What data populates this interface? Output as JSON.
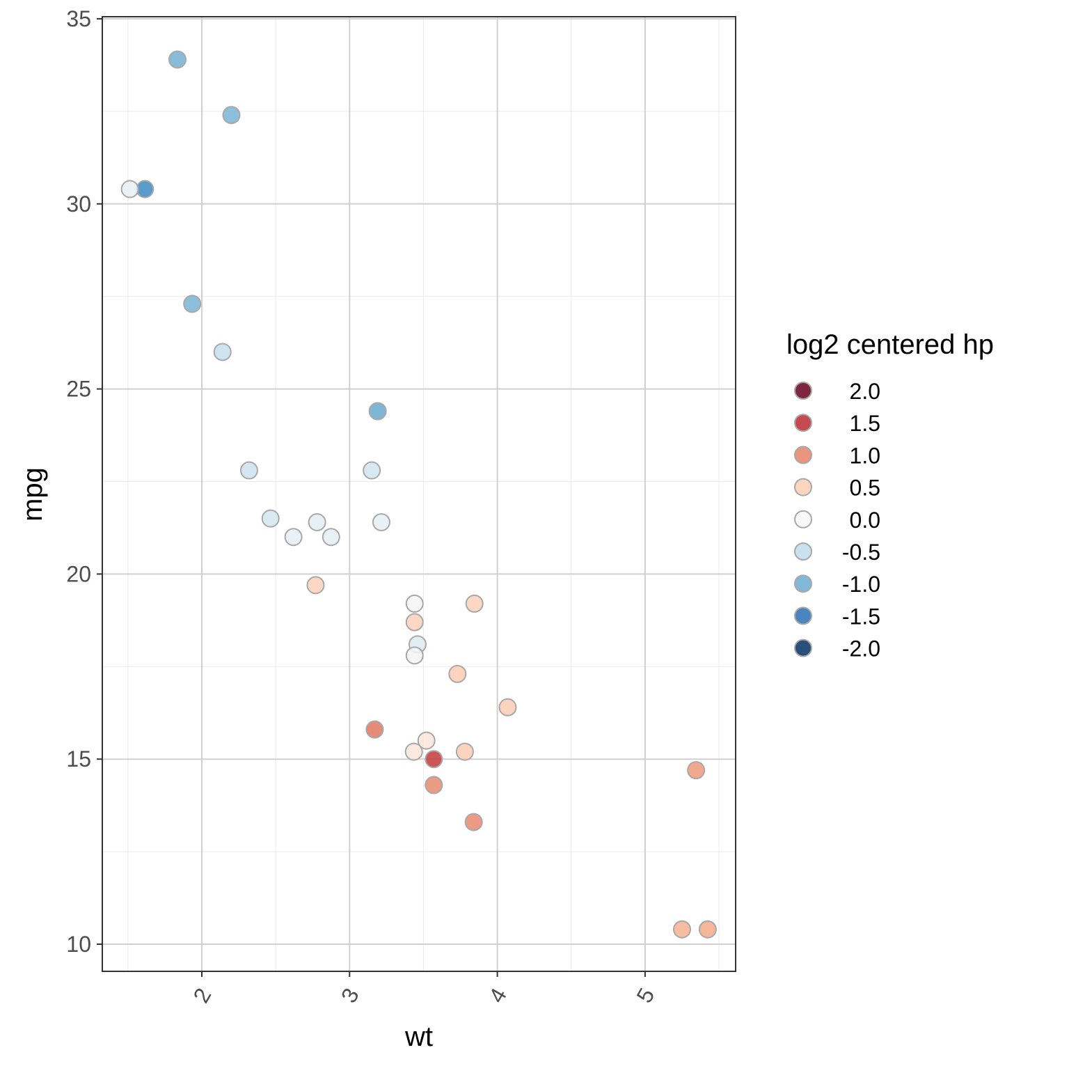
{
  "chart_data": {
    "type": "scatter",
    "title": "",
    "xlabel": "wt",
    "ylabel": "mpg",
    "xlim": [
      1.32,
      5.62
    ],
    "ylim": [
      9.2,
      35.0
    ],
    "x_ticks": [
      2,
      3,
      4,
      5
    ],
    "x_tick_labels": [
      "2",
      "3",
      "4",
      "5"
    ],
    "y_ticks": [
      10,
      15,
      20,
      25,
      30,
      35
    ],
    "y_tick_labels": [
      "10",
      "15",
      "20",
      "25",
      "30",
      "35"
    ],
    "grid": true,
    "color_variable": "log2 centered hp",
    "color_center_hp": 126,
    "color_range": [
      -2,
      2
    ],
    "palette": [
      "#053061",
      "#2166ac",
      "#4393c3",
      "#92c5de",
      "#d1e5f0",
      "#f7f7f7",
      "#fddbc7",
      "#f4a582",
      "#d6604d",
      "#b2182b",
      "#67001f"
    ],
    "legend": {
      "title": "log2 centered hp",
      "position": "right",
      "values": [
        2.0,
        1.5,
        1.0,
        0.5,
        0.0,
        -0.5,
        -1.0,
        -1.5,
        -2.0
      ],
      "labels": [
        "2.0",
        "1.5",
        "1.0",
        "0.5",
        "0.0",
        "-0.5",
        "-1.0",
        "-1.5",
        "-2.0"
      ]
    },
    "points": [
      {
        "wt": 2.62,
        "mpg": 21.0,
        "hp": 110
      },
      {
        "wt": 2.875,
        "mpg": 21.0,
        "hp": 110
      },
      {
        "wt": 2.32,
        "mpg": 22.8,
        "hp": 93
      },
      {
        "wt": 3.215,
        "mpg": 21.4,
        "hp": 110
      },
      {
        "wt": 3.44,
        "mpg": 18.7,
        "hp": 175
      },
      {
        "wt": 3.46,
        "mpg": 18.1,
        "hp": 105
      },
      {
        "wt": 3.57,
        "mpg": 14.3,
        "hp": 245
      },
      {
        "wt": 3.19,
        "mpg": 24.4,
        "hp": 62
      },
      {
        "wt": 3.15,
        "mpg": 22.8,
        "hp": 95
      },
      {
        "wt": 3.44,
        "mpg": 19.2,
        "hp": 123
      },
      {
        "wt": 3.44,
        "mpg": 17.8,
        "hp": 123
      },
      {
        "wt": 4.07,
        "mpg": 16.4,
        "hp": 180
      },
      {
        "wt": 3.73,
        "mpg": 17.3,
        "hp": 180
      },
      {
        "wt": 3.78,
        "mpg": 15.2,
        "hp": 180
      },
      {
        "wt": 5.25,
        "mpg": 10.4,
        "hp": 205
      },
      {
        "wt": 5.424,
        "mpg": 10.4,
        "hp": 215
      },
      {
        "wt": 5.345,
        "mpg": 14.7,
        "hp": 230
      },
      {
        "wt": 2.2,
        "mpg": 32.4,
        "hp": 66
      },
      {
        "wt": 1.615,
        "mpg": 30.4,
        "hp": 52
      },
      {
        "wt": 1.835,
        "mpg": 33.9,
        "hp": 65
      },
      {
        "wt": 2.465,
        "mpg": 21.5,
        "hp": 97
      },
      {
        "wt": 3.52,
        "mpg": 15.5,
        "hp": 150
      },
      {
        "wt": 3.435,
        "mpg": 15.2,
        "hp": 150
      },
      {
        "wt": 3.84,
        "mpg": 13.3,
        "hp": 245
      },
      {
        "wt": 3.845,
        "mpg": 19.2,
        "hp": 175
      },
      {
        "wt": 1.935,
        "mpg": 27.3,
        "hp": 66
      },
      {
        "wt": 2.14,
        "mpg": 26.0,
        "hp": 91
      },
      {
        "wt": 1.513,
        "mpg": 30.4,
        "hp": 113
      },
      {
        "wt": 3.17,
        "mpg": 15.8,
        "hp": 264
      },
      {
        "wt": 2.77,
        "mpg": 19.7,
        "hp": 175
      },
      {
        "wt": 3.57,
        "mpg": 15.0,
        "hp": 335
      },
      {
        "wt": 2.78,
        "mpg": 21.4,
        "hp": 109
      }
    ]
  }
}
